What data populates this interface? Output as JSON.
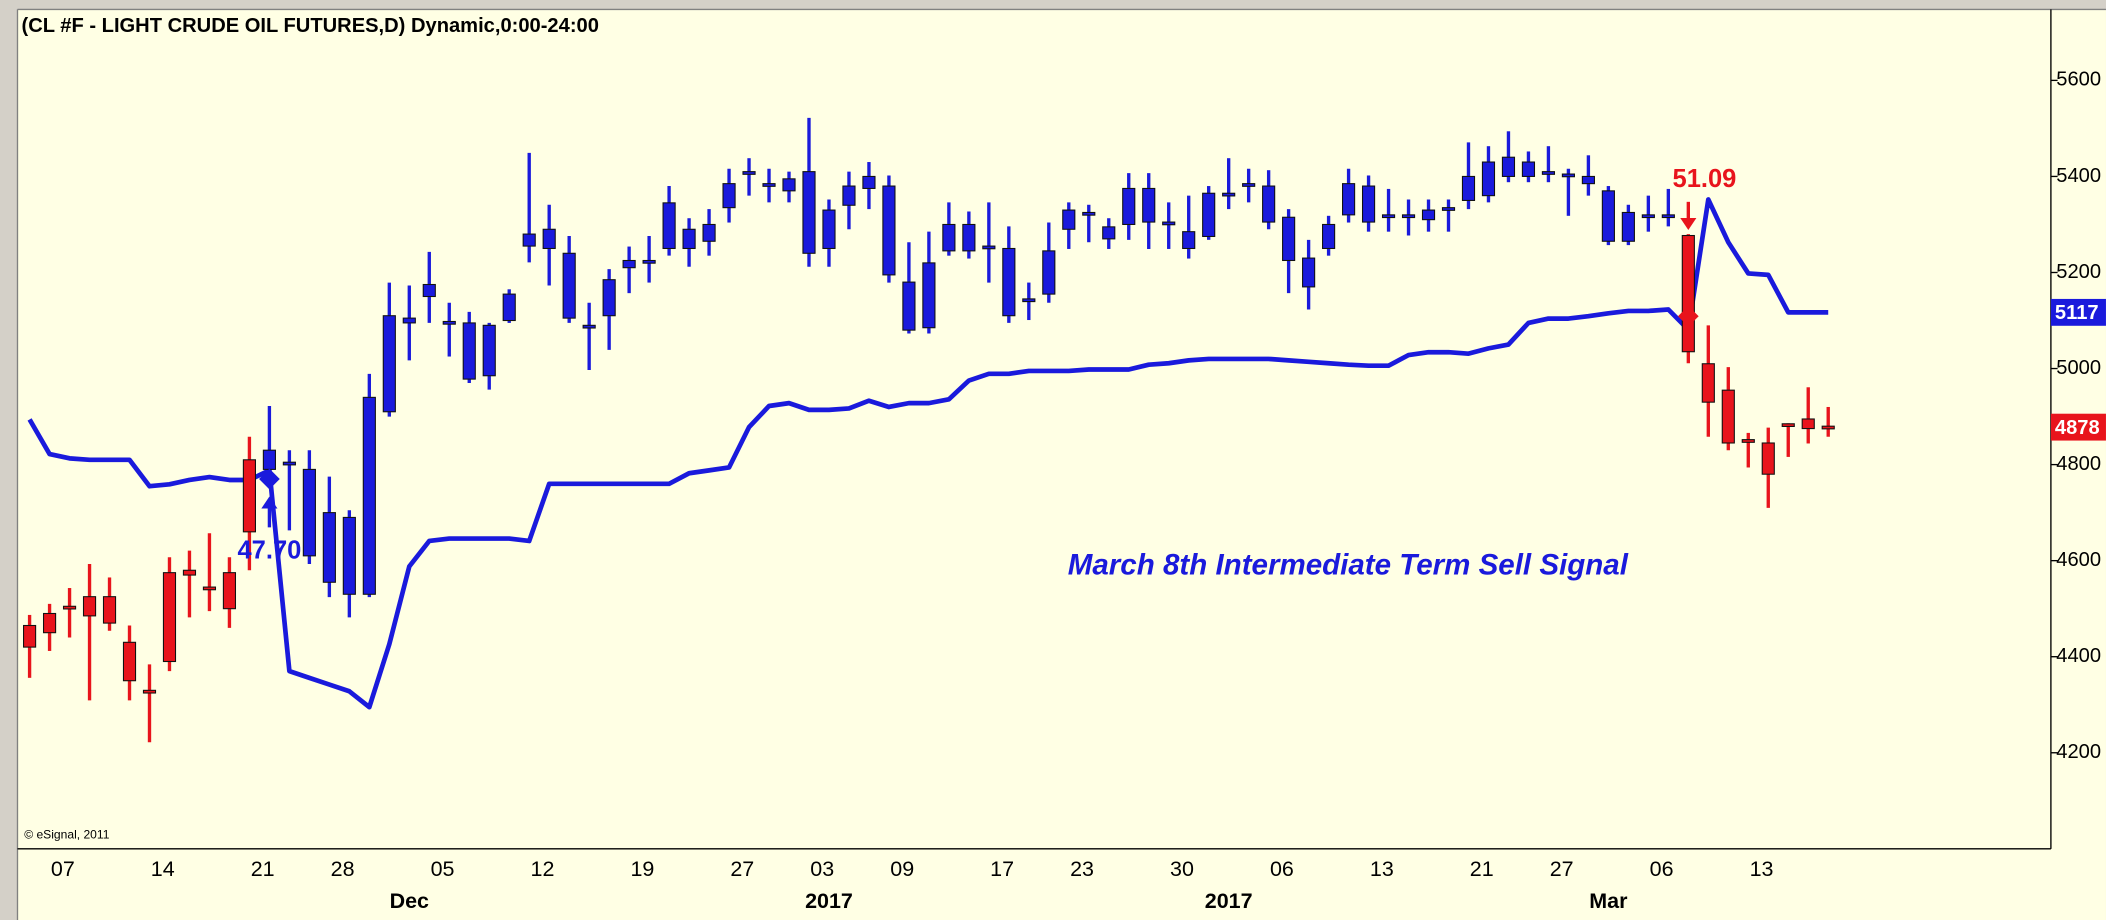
{
  "chart_data": {
    "type": "candlestick",
    "title": "(CL #F - LIGHT CRUDE OIL FUTURES,D) Dynamic,0:00-24:00",
    "credit": "© eSignal, 2011",
    "annotations": [
      {
        "text": "March 8th Intermediate Term Sell Signal",
        "color": "#1a1adc"
      }
    ],
    "categories": [
      null,
      null,
      "07",
      null,
      null,
      null,
      null,
      "14",
      null,
      null,
      null,
      null,
      "21",
      null,
      null,
      null,
      "28",
      null,
      null,
      null,
      null,
      "05",
      null,
      null,
      null,
      null,
      "12",
      null,
      null,
      null,
      null,
      "19",
      null,
      null,
      null,
      null,
      "27",
      null,
      null,
      null,
      "03",
      null,
      null,
      null,
      "09",
      null,
      null,
      null,
      null,
      "17",
      null,
      null,
      null,
      "23",
      null,
      null,
      null,
      null,
      "30",
      null,
      null,
      null,
      null,
      "06",
      null,
      null,
      null,
      null,
      "13",
      null,
      null,
      null,
      null,
      "21",
      null,
      null,
      null,
      "27",
      null,
      null,
      null,
      null,
      "06",
      null,
      null,
      null,
      null,
      "13",
      null,
      null,
      null
    ],
    "period_labels": [
      null,
      null,
      null,
      null,
      null,
      null,
      null,
      null,
      null,
      null,
      null,
      null,
      null,
      null,
      null,
      null,
      null,
      null,
      null,
      "Dec",
      null,
      null,
      null,
      null,
      null,
      null,
      null,
      null,
      null,
      null,
      null,
      null,
      null,
      null,
      null,
      null,
      null,
      null,
      null,
      null,
      "2017",
      null,
      null,
      null,
      null,
      null,
      null,
      null,
      null,
      null,
      null,
      null,
      null,
      null,
      null,
      null,
      null,
      null,
      null,
      null,
      "2017",
      null,
      null,
      null,
      null,
      null,
      null,
      null,
      null,
      null,
      null,
      null,
      null,
      null,
      null,
      null,
      null,
      null,
      null,
      "Mar",
      null,
      null,
      null,
      null,
      null,
      null,
      null,
      null,
      null,
      null,
      null
    ],
    "open": [
      4420,
      4450,
      4500,
      4485,
      4525,
      4430,
      4330,
      4390,
      4570,
      4545,
      4575,
      4660,
      4790,
      4800,
      4790,
      4700,
      4530,
      4530,
      4910,
      5095,
      5150,
      5095,
      5095,
      4985,
      5100,
      5255,
      5290,
      5240,
      5090,
      5110,
      5210,
      5220,
      5250,
      5290,
      5265,
      5335,
      5405,
      5385,
      5395,
      5410,
      5250,
      5340,
      5375,
      5380,
      5180,
      5085,
      5245,
      5300,
      5255,
      5250,
      5140,
      5155,
      5290,
      5320,
      5295,
      5300,
      5375,
      5305,
      5285,
      5275,
      5360,
      5380,
      5380,
      5315,
      5230,
      5250,
      5320,
      5380,
      5320,
      5315,
      5310,
      5330,
      5350,
      5360,
      5440,
      5400,
      5405,
      5405,
      5400,
      5370,
      5265,
      5315,
      5320,
      5277,
      5010,
      4955,
      4848,
      4780,
      4880,
      4875,
      4880
    ],
    "high": [
      4487,
      4510,
      4543,
      4593,
      4565,
      4465,
      4384,
      4607,
      4621,
      4657,
      4607,
      4858,
      4922,
      4830,
      4830,
      4775,
      4705,
      4989,
      5179,
      5173,
      5243,
      5137,
      5118,
      5095,
      5165,
      5449,
      5341,
      5276,
      5137,
      5207,
      5254,
      5276,
      5380,
      5313,
      5332,
      5416,
      5438,
      5416,
      5410,
      5522,
      5352,
      5410,
      5430,
      5402,
      5263,
      5285,
      5346,
      5327,
      5346,
      5296,
      5179,
      5304,
      5346,
      5341,
      5313,
      5407,
      5407,
      5346,
      5360,
      5380,
      5438,
      5416,
      5413,
      5332,
      5268,
      5318,
      5416,
      5402,
      5374,
      5352,
      5352,
      5352,
      5471,
      5463,
      5494,
      5452,
      5463,
      5416,
      5444,
      5380,
      5341,
      5360,
      5374,
      5280,
      5090,
      5003,
      4866,
      4877,
      4886,
      4961,
      4920
    ],
    "low": [
      4356,
      4412,
      4440,
      4309,
      4454,
      4309,
      4222,
      4370,
      4482,
      4495,
      4460,
      4580,
      4760,
      4663,
      4593,
      4524,
      4482,
      4524,
      4900,
      5017,
      5095,
      5025,
      4970,
      4956,
      5095,
      5221,
      5173,
      5095,
      4997,
      5039,
      5157,
      5179,
      5235,
      5212,
      5235,
      5304,
      5360,
      5346,
      5346,
      5212,
      5212,
      5290,
      5332,
      5179,
      5073,
      5073,
      5235,
      5229,
      5179,
      5095,
      5101,
      5137,
      5249,
      5263,
      5249,
      5268,
      5249,
      5249,
      5229,
      5268,
      5332,
      5346,
      5290,
      5157,
      5123,
      5235,
      5304,
      5285,
      5285,
      5277,
      5285,
      5285,
      5332,
      5346,
      5388,
      5388,
      5388,
      5318,
      5360,
      5257,
      5257,
      5285,
      5296,
      5011,
      4858,
      4830,
      4794,
      4710,
      4816,
      4844,
      4858
    ],
    "close": [
      4465,
      4490,
      4505,
      4525,
      4470,
      4350,
      4325,
      4575,
      4580,
      4540,
      4500,
      4810,
      4830,
      4805,
      4610,
      4555,
      4690,
      4940,
      5110,
      5105,
      5175,
      5098,
      4978,
      5090,
      5155,
      5280,
      5250,
      5105,
      5085,
      5185,
      5225,
      5225,
      5345,
      5250,
      5300,
      5385,
      5410,
      5380,
      5370,
      5240,
      5330,
      5380,
      5400,
      5195,
      5080,
      5220,
      5300,
      5245,
      5250,
      5110,
      5145,
      5245,
      5330,
      5325,
      5270,
      5375,
      5305,
      5300,
      5250,
      5365,
      5365,
      5385,
      5305,
      5225,
      5170,
      5300,
      5385,
      5305,
      5315,
      5320,
      5330,
      5335,
      5400,
      5430,
      5400,
      5430,
      5410,
      5405,
      5385,
      5265,
      5325,
      5320,
      5315,
      5035,
      4930,
      4845,
      4852,
      4845,
      4885,
      4895,
      4878
    ],
    "colors": [
      "#e8141c",
      "#e8141c",
      "#e8141c",
      "#e8141c",
      "#e8141c",
      "#e8141c",
      "#e8141c",
      "#e8141c",
      "#e8141c",
      "#e8141c",
      "#e8141c",
      "#e8141c",
      "#1a1adc",
      "#1a1adc",
      "#1a1adc",
      "#1a1adc",
      "#1a1adc",
      "#1a1adc",
      "#1a1adc",
      "#1a1adc",
      "#1a1adc",
      "#1a1adc",
      "#1a1adc",
      "#1a1adc",
      "#1a1adc",
      "#1a1adc",
      "#1a1adc",
      "#1a1adc",
      "#1a1adc",
      "#1a1adc",
      "#1a1adc",
      "#1a1adc",
      "#1a1adc",
      "#1a1adc",
      "#1a1adc",
      "#1a1adc",
      "#1a1adc",
      "#1a1adc",
      "#1a1adc",
      "#1a1adc",
      "#1a1adc",
      "#1a1adc",
      "#1a1adc",
      "#1a1adc",
      "#1a1adc",
      "#1a1adc",
      "#1a1adc",
      "#1a1adc",
      "#1a1adc",
      "#1a1adc",
      "#1a1adc",
      "#1a1adc",
      "#1a1adc",
      "#1a1adc",
      "#1a1adc",
      "#1a1adc",
      "#1a1adc",
      "#1a1adc",
      "#1a1adc",
      "#1a1adc",
      "#1a1adc",
      "#1a1adc",
      "#1a1adc",
      "#1a1adc",
      "#1a1adc",
      "#1a1adc",
      "#1a1adc",
      "#1a1adc",
      "#1a1adc",
      "#1a1adc",
      "#1a1adc",
      "#1a1adc",
      "#1a1adc",
      "#1a1adc",
      "#1a1adc",
      "#1a1adc",
      "#1a1adc",
      "#1a1adc",
      "#1a1adc",
      "#1a1adc",
      "#1a1adc",
      "#1a1adc",
      "#1a1adc",
      "#e8141c",
      "#e8141c",
      "#e8141c",
      "#e8141c",
      "#e8141c",
      "#e8141c",
      "#e8141c",
      "#e8141c"
    ],
    "line": {
      "color": "#1a1adc",
      "values": [
        4894,
        4822,
        4813,
        4810,
        4810,
        4810,
        4755,
        4759,
        4768,
        4774,
        4768,
        4768,
        4788,
        4370,
        4356,
        4342,
        4328,
        4295,
        4426,
        4588,
        4641,
        4646,
        4646,
        4646,
        4646,
        4641,
        4760,
        4760,
        4760,
        4760,
        4760,
        4760,
        4760,
        4782,
        4788,
        4794,
        4878,
        4922,
        4928,
        4914,
        4914,
        4917,
        4933,
        4920,
        4928,
        4928,
        4936,
        4975,
        4989,
        4989,
        4995,
        4995,
        4995,
        4998,
        4998,
        4998,
        5008,
        5011,
        5017,
        5020,
        5020,
        5020,
        5020,
        5017,
        5014,
        5011,
        5008,
        5006,
        5006,
        5028,
        5034,
        5034,
        5031,
        5042,
        5050,
        5095,
        5104,
        5104,
        5109,
        5115,
        5120,
        5120,
        5123,
        5081,
        5352,
        5263,
        5198,
        5195,
        5117,
        5117,
        5117
      ]
    },
    "signals": [
      {
        "label": "47.70",
        "value": 4770,
        "bar": 12,
        "color": "#1a1adc"
      },
      {
        "label": "51.09",
        "value": 5109,
        "bar": 83,
        "color": "#e8141c"
      }
    ],
    "last_labels": [
      {
        "value": 5117,
        "color": "#1a1adc"
      },
      {
        "value": 4878,
        "color": "#e8141c"
      }
    ],
    "ylim": [
      4000,
      5745
    ],
    "yticks": [
      4200,
      4400,
      4600,
      4800,
      5000,
      5200,
      5400,
      5600
    ],
    "grid": false
  }
}
